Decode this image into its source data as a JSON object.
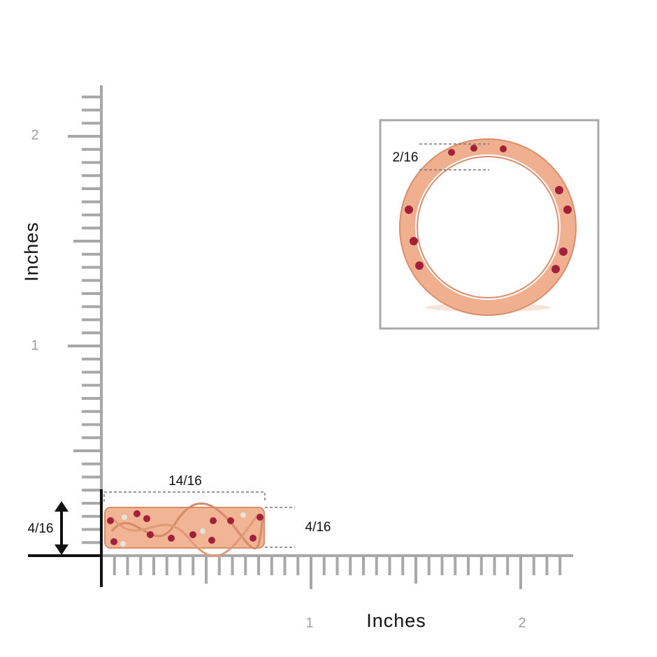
{
  "ruler": {
    "x_axis_label": "Inches",
    "y_axis_label": "Inches",
    "x_tick_labels": [
      "1",
      "2"
    ],
    "y_tick_labels": [
      "1",
      "2"
    ]
  },
  "dimensions": {
    "width": "14/16",
    "height": "4/16",
    "height_left": "4/16",
    "inset_thickness": "2/16"
  }
}
